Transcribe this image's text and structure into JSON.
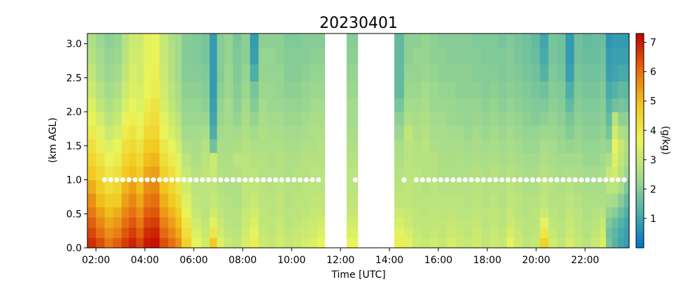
{
  "chart_data": {
    "type": "heatmap",
    "title": "20230401",
    "xlabel": "Time [UTC]",
    "ylabel": "(km AGL)",
    "colorbar_label": "(g/kg)",
    "x_ticks": [
      "02:00",
      "04:00",
      "06:00",
      "08:00",
      "10:00",
      "12:00",
      "14:00",
      "16:00",
      "18:00",
      "20:00",
      "22:00"
    ],
    "x_tick_hours": [
      2,
      4,
      6,
      8,
      10,
      12,
      14,
      16,
      18,
      20,
      22
    ],
    "xlim_hours": [
      1.65,
      23.8
    ],
    "y_ticks": [
      "0.0",
      "0.5",
      "1.0",
      "1.5",
      "2.0",
      "2.5",
      "3.0"
    ],
    "y_tick_values": [
      0.0,
      0.5,
      1.0,
      1.5,
      2.0,
      2.5,
      3.0
    ],
    "ylim": [
      0.0,
      3.15
    ],
    "colorbar_ticks": [
      "1",
      "2",
      "3",
      "4",
      "5",
      "6",
      "7"
    ],
    "colorbar_tick_values": [
      1,
      2,
      3,
      4,
      5,
      6,
      7
    ],
    "colorbar_range": [
      0,
      7.3
    ],
    "colormap": [
      "#0072c8",
      "#4fb0a8",
      "#a6dc8c",
      "#eaf55a",
      "#f2c81e",
      "#e56a10",
      "#c00000"
    ],
    "missing_periods_hours": [
      [
        11.35,
        12.25
      ],
      [
        13.35,
        14.2
      ]
    ],
    "layers_km": [
      0.0,
      0.15,
      0.3,
      0.45,
      0.6,
      0.8,
      1.0,
      1.2,
      1.4,
      1.6,
      1.8,
      2.0,
      2.2,
      2.45,
      2.7,
      2.95,
      3.15
    ],
    "profile_times_hours": [
      1.65,
      2.0,
      2.35,
      2.7,
      3.05,
      3.35,
      3.65,
      3.95,
      4.25,
      4.6,
      4.95,
      5.25,
      5.5,
      5.9,
      6.3,
      6.65,
      6.95,
      7.25,
      7.6,
      7.95,
      8.3,
      8.65,
      9.0,
      9.35,
      9.7,
      10.05,
      10.4,
      10.75,
      11.05,
      11.35,
      12.25,
      12.7,
      13.35,
      14.2,
      14.6,
      14.95,
      15.3,
      15.65,
      16.0,
      16.35,
      16.7,
      17.05,
      17.4,
      17.75,
      18.1,
      18.45,
      18.8,
      19.1,
      19.45,
      19.8,
      20.15,
      20.5,
      20.85,
      21.2,
      21.55,
      21.9,
      22.25,
      22.6,
      22.85,
      23.1,
      23.35,
      23.6,
      23.8
    ],
    "profiles_gkg": [
      [
        6.8,
        6.5,
        6.2,
        5.9,
        5.6,
        5.2,
        4.8,
        4.5,
        4.2,
        3.9,
        3.6,
        3.4,
        3.1,
        2.9,
        2.7,
        2.6
      ],
      [
        6.4,
        6.0,
        5.7,
        5.4,
        5.0,
        4.7,
        4.4,
        4.1,
        3.8,
        3.5,
        3.2,
        2.9,
        2.7,
        2.5,
        2.4,
        2.3
      ],
      [
        5.9,
        5.6,
        5.3,
        5.0,
        4.7,
        4.3,
        4.0,
        3.7,
        3.4,
        3.1,
        2.8,
        2.6,
        2.4,
        2.3,
        2.2,
        2.1
      ],
      [
        6.2,
        5.8,
        5.5,
        5.2,
        4.8,
        4.5,
        4.2,
        3.9,
        3.6,
        3.3,
        3.0,
        2.8,
        2.6,
        2.4,
        2.3,
        2.2
      ],
      [
        6.6,
        6.3,
        6.0,
        5.7,
        5.4,
        5.1,
        4.8,
        4.5,
        4.2,
        3.9,
        3.6,
        3.3,
        3.1,
        2.9,
        2.8,
        2.7
      ],
      [
        6.9,
        6.6,
        6.3,
        6.0,
        5.7,
        5.4,
        5.0,
        4.7,
        4.4,
        4.1,
        3.8,
        3.6,
        3.4,
        3.3,
        3.2,
        3.1
      ],
      [
        6.5,
        6.2,
        5.9,
        5.6,
        5.3,
        5.0,
        4.7,
        4.4,
        4.1,
        3.8,
        3.6,
        3.4,
        3.3,
        3.2,
        3.2,
        3.1
      ],
      [
        7.0,
        6.8,
        6.5,
        6.2,
        5.9,
        5.6,
        5.3,
        5.0,
        4.7,
        4.4,
        4.1,
        3.9,
        3.7,
        3.6,
        3.5,
        3.5
      ],
      [
        7.1,
        6.9,
        6.6,
        6.3,
        6.0,
        5.7,
        5.4,
        5.1,
        4.8,
        4.5,
        4.3,
        4.1,
        3.9,
        3.8,
        3.7,
        3.6
      ],
      [
        6.4,
        6.1,
        5.8,
        5.5,
        5.2,
        4.9,
        4.6,
        4.3,
        4.0,
        3.7,
        3.5,
        3.3,
        3.2,
        3.1,
        3.0,
        3.0
      ],
      [
        6.0,
        5.7,
        5.4,
        5.1,
        4.8,
        4.5,
        4.2,
        3.9,
        3.6,
        3.3,
        3.1,
        2.9,
        2.8,
        2.7,
        2.7,
        2.6
      ],
      [
        5.6,
        5.3,
        5.0,
        4.7,
        4.4,
        4.1,
        3.8,
        3.5,
        3.2,
        3.0,
        2.8,
        2.6,
        2.5,
        2.4,
        2.4,
        2.4
      ],
      [
        4.6,
        4.3,
        4.0,
        3.7,
        3.4,
        3.2,
        3.0,
        2.8,
        2.6,
        2.4,
        2.3,
        2.2,
        2.1,
        2.0,
        2.0,
        2.0
      ],
      [
        3.6,
        3.4,
        3.2,
        3.0,
        2.9,
        2.8,
        2.7,
        2.6,
        2.5,
        2.4,
        2.3,
        2.2,
        2.1,
        2.0,
        1.9,
        1.9
      ],
      [
        3.2,
        3.0,
        2.9,
        2.8,
        2.8,
        2.8,
        2.9,
        2.8,
        2.7,
        2.5,
        2.3,
        2.1,
        2.0,
        1.9,
        1.8,
        1.8
      ],
      [
        4.8,
        4.0,
        3.5,
        3.2,
        3.0,
        2.9,
        3.0,
        3.1,
        1.7,
        1.2,
        1.0,
        0.9,
        0.8,
        0.8,
        0.8,
        0.8
      ],
      [
        3.4,
        3.2,
        3.0,
        2.9,
        2.8,
        2.7,
        2.7,
        2.6,
        2.5,
        2.4,
        2.3,
        2.2,
        2.1,
        2.0,
        2.0,
        2.0
      ],
      [
        3.0,
        2.9,
        2.8,
        2.7,
        2.7,
        2.6,
        2.6,
        2.6,
        2.5,
        2.5,
        2.4,
        2.4,
        2.3,
        2.3,
        2.2,
        2.2
      ],
      [
        2.9,
        2.8,
        2.7,
        2.7,
        2.6,
        2.6,
        2.7,
        2.8,
        2.6,
        2.4,
        2.2,
        2.1,
        2.0,
        1.9,
        1.9,
        1.8
      ],
      [
        3.3,
        3.2,
        3.1,
        3.0,
        2.9,
        2.9,
        2.8,
        2.8,
        2.7,
        2.6,
        2.5,
        2.4,
        2.3,
        2.2,
        2.1,
        2.1
      ],
      [
        3.8,
        3.6,
        3.4,
        3.2,
        3.0,
        2.9,
        2.8,
        2.7,
        2.6,
        2.4,
        2.2,
        2.0,
        1.8,
        1.2,
        0.9,
        0.8
      ],
      [
        3.1,
        3.0,
        2.9,
        2.9,
        2.8,
        2.8,
        2.7,
        2.7,
        2.6,
        2.6,
        2.5,
        2.4,
        2.3,
        2.2,
        2.2,
        2.1
      ],
      [
        3.0,
        2.9,
        2.9,
        2.8,
        2.8,
        2.7,
        2.7,
        2.6,
        2.6,
        2.5,
        2.4,
        2.3,
        2.3,
        2.2,
        2.2,
        2.1
      ],
      [
        3.2,
        3.1,
        3.0,
        2.9,
        2.9,
        2.8,
        2.7,
        2.7,
        2.6,
        2.5,
        2.4,
        2.3,
        2.2,
        2.2,
        2.1,
        2.1
      ],
      [
        3.0,
        2.9,
        2.8,
        2.8,
        2.7,
        2.7,
        2.6,
        2.6,
        2.5,
        2.4,
        2.3,
        2.2,
        2.1,
        2.0,
        2.0,
        1.9
      ],
      [
        3.1,
        3.0,
        2.9,
        2.8,
        2.8,
        2.7,
        2.7,
        2.6,
        2.5,
        2.4,
        2.3,
        2.2,
        2.1,
        2.0,
        2.0,
        1.9
      ],
      [
        3.3,
        3.1,
        3.0,
        2.9,
        2.8,
        2.8,
        2.7,
        2.7,
        2.6,
        2.5,
        2.4,
        2.3,
        2.2,
        2.1,
        2.0,
        2.0
      ],
      [
        3.4,
        3.2,
        3.1,
        3.0,
        2.9,
        2.8,
        2.8,
        2.7,
        2.6,
        2.6,
        2.5,
        2.4,
        2.3,
        2.2,
        2.1,
        2.0
      ],
      [
        3.6,
        3.4,
        3.2,
        3.0,
        2.9,
        2.8,
        2.8,
        2.7,
        2.7,
        2.6,
        2.5,
        2.4,
        2.3,
        2.2,
        2.1,
        2.0
      ],
      null,
      [
        3.6,
        3.4,
        3.2,
        3.0,
        2.9,
        2.8,
        2.8,
        2.7,
        2.6,
        2.5,
        2.4,
        2.4,
        2.3,
        2.2,
        2.1,
        2.0
      ],
      null,
      null,
      [
        3.8,
        3.5,
        3.3,
        3.1,
        2.9,
        2.8,
        2.7,
        2.6,
        2.5,
        2.3,
        2.1,
        1.8,
        1.5,
        1.5,
        1.5,
        1.5
      ],
      [
        3.5,
        3.3,
        3.1,
        3.0,
        2.9,
        2.9,
        2.8,
        2.8,
        2.8,
        2.9,
        2.6,
        2.4,
        2.3,
        2.2,
        2.1,
        2.1
      ],
      [
        3.1,
        3.0,
        2.9,
        2.9,
        2.8,
        2.8,
        2.8,
        2.7,
        2.7,
        2.6,
        2.5,
        2.4,
        2.3,
        2.2,
        2.2,
        2.1
      ],
      [
        3.0,
        2.9,
        2.9,
        2.8,
        2.8,
        2.7,
        2.7,
        2.7,
        2.8,
        2.7,
        2.6,
        2.5,
        2.4,
        2.3,
        2.2,
        2.2
      ],
      [
        3.2,
        3.0,
        2.9,
        2.9,
        2.8,
        2.8,
        2.7,
        2.7,
        2.6,
        2.5,
        2.4,
        2.3,
        2.3,
        2.2,
        2.1,
        2.1
      ],
      [
        3.0,
        2.9,
        2.9,
        2.8,
        2.8,
        2.7,
        2.6,
        2.6,
        2.5,
        2.5,
        2.4,
        2.3,
        2.2,
        2.1,
        2.1,
        2.0
      ],
      [
        3.3,
        3.1,
        3.0,
        2.9,
        2.8,
        2.7,
        2.6,
        2.5,
        2.5,
        2.4,
        2.3,
        2.3,
        2.2,
        2.1,
        2.0,
        2.0
      ],
      [
        3.1,
        3.0,
        2.9,
        2.8,
        2.8,
        2.7,
        2.6,
        2.6,
        2.5,
        2.4,
        2.3,
        2.2,
        2.1,
        2.1,
        2.0,
        2.0
      ],
      [
        3.0,
        2.9,
        2.9,
        2.8,
        2.7,
        2.7,
        2.6,
        2.5,
        2.4,
        2.3,
        2.2,
        2.2,
        2.1,
        2.1,
        2.0,
        2.0
      ],
      [
        3.2,
        3.1,
        3.0,
        2.9,
        2.8,
        2.8,
        2.7,
        2.6,
        2.5,
        2.4,
        2.3,
        2.2,
        2.1,
        2.0,
        2.0,
        1.9
      ],
      [
        2.9,
        2.9,
        2.8,
        2.8,
        2.7,
        2.7,
        2.6,
        2.5,
        2.4,
        2.3,
        2.2,
        2.1,
        2.0,
        2.0,
        1.9,
        1.9
      ],
      [
        3.1,
        3.0,
        2.9,
        2.9,
        2.8,
        2.7,
        2.7,
        2.6,
        2.5,
        2.4,
        2.3,
        2.2,
        2.1,
        2.0,
        1.9,
        1.9
      ],
      [
        3.0,
        2.9,
        2.8,
        2.8,
        2.7,
        2.7,
        2.6,
        2.5,
        2.4,
        2.3,
        2.2,
        2.1,
        2.0,
        1.9,
        1.9,
        1.8
      ],
      [
        3.6,
        3.3,
        3.1,
        3.0,
        2.9,
        2.8,
        2.7,
        2.6,
        2.5,
        2.4,
        2.3,
        2.2,
        2.1,
        2.0,
        2.0,
        1.9
      ],
      [
        3.1,
        3.0,
        2.9,
        2.8,
        2.8,
        2.7,
        2.6,
        2.5,
        2.4,
        2.3,
        2.2,
        2.1,
        2.0,
        1.9,
        1.8,
        1.8
      ],
      [
        2.9,
        2.8,
        2.8,
        2.7,
        2.7,
        2.6,
        2.5,
        2.4,
        2.3,
        2.2,
        2.1,
        2.0,
        1.9,
        1.8,
        1.7,
        1.7
      ],
      [
        3.0,
        2.9,
        2.8,
        2.8,
        2.7,
        2.6,
        2.5,
        2.4,
        2.3,
        2.2,
        2.0,
        1.9,
        1.8,
        1.7,
        1.6,
        1.5
      ],
      [
        4.6,
        4.0,
        3.5,
        3.1,
        2.9,
        2.8,
        2.7,
        2.6,
        2.5,
        2.3,
        2.1,
        1.9,
        1.7,
        1.3,
        1.1,
        1.0
      ],
      [
        3.2,
        3.0,
        2.9,
        2.8,
        2.7,
        2.7,
        2.6,
        2.5,
        2.4,
        2.3,
        2.2,
        2.1,
        2.0,
        1.9,
        1.8,
        1.8
      ],
      [
        2.9,
        2.8,
        2.8,
        2.7,
        2.7,
        2.6,
        2.5,
        2.4,
        2.3,
        2.2,
        2.1,
        2.0,
        1.9,
        1.8,
        1.7,
        1.7
      ],
      [
        3.3,
        3.1,
        3.0,
        2.9,
        2.8,
        2.7,
        2.6,
        2.4,
        2.2,
        2.0,
        1.8,
        1.5,
        1.2,
        0.9,
        0.8,
        0.8
      ],
      [
        3.0,
        2.9,
        2.8,
        2.8,
        2.7,
        2.6,
        2.5,
        2.4,
        2.3,
        2.2,
        2.1,
        2.0,
        1.9,
        1.8,
        1.7,
        1.7
      ],
      [
        2.8,
        2.7,
        2.7,
        2.6,
        2.6,
        2.5,
        2.4,
        2.3,
        2.2,
        2.1,
        2.0,
        1.9,
        1.8,
        1.7,
        1.6,
        1.5
      ],
      [
        3.1,
        2.9,
        2.8,
        2.7,
        2.6,
        2.5,
        2.4,
        2.3,
        2.2,
        2.1,
        2.0,
        1.9,
        1.8,
        1.7,
        1.6,
        1.6
      ],
      [
        3.4,
        3.2,
        3.0,
        2.8,
        2.6,
        2.5,
        2.5,
        2.4,
        2.3,
        2.2,
        2.1,
        2.0,
        1.9,
        1.8,
        1.7,
        1.6
      ],
      [
        1.8,
        1.7,
        1.9,
        2.2,
        2.5,
        2.8,
        3.0,
        2.6,
        2.2,
        1.8,
        1.5,
        1.3,
        1.1,
        0.9,
        0.8,
        0.7
      ],
      [
        1.3,
        1.4,
        1.6,
        2.0,
        2.4,
        2.8,
        3.2,
        3.4,
        3.6,
        3.2,
        2.8,
        1.7,
        1.3,
        1.0,
        0.9,
        0.8
      ],
      [
        1.0,
        1.1,
        1.3,
        1.6,
        2.0,
        2.4,
        2.7,
        2.9,
        3.0,
        2.6,
        2.1,
        1.8,
        1.5,
        1.1,
        0.9,
        0.8
      ],
      [
        0.8,
        0.9,
        1.0,
        1.2,
        1.5,
        1.9,
        2.3,
        2.5,
        2.6,
        2.4,
        2.1,
        1.7,
        1.4,
        1.1,
        0.9,
        0.8
      ],
      [
        0.8,
        0.9,
        1.0,
        1.2,
        1.5,
        1.9,
        2.3,
        2.5,
        2.6,
        2.4,
        2.1,
        1.7,
        1.4,
        1.1,
        0.9,
        0.8
      ]
    ],
    "marker_height_km": 1.0,
    "marker_times_hours": [
      2.35,
      2.6,
      2.85,
      3.1,
      3.35,
      3.6,
      3.85,
      4.1,
      4.35,
      4.6,
      4.85,
      5.1,
      5.35,
      5.6,
      5.85,
      6.1,
      6.35,
      6.6,
      6.85,
      7.1,
      7.35,
      7.6,
      7.85,
      8.1,
      8.35,
      8.6,
      8.85,
      9.1,
      9.35,
      9.6,
      9.85,
      10.1,
      10.35,
      10.6,
      10.85,
      11.1,
      12.6,
      14.6,
      15.1,
      15.35,
      15.6,
      15.85,
      16.1,
      16.35,
      16.6,
      16.85,
      17.1,
      17.35,
      17.6,
      17.85,
      18.1,
      18.35,
      18.6,
      18.85,
      19.1,
      19.35,
      19.6,
      19.85,
      20.1,
      20.35,
      20.6,
      20.85,
      21.1,
      21.35,
      21.6,
      21.85,
      22.1,
      22.35,
      22.6,
      22.85,
      23.1,
      23.35,
      23.6
    ]
  }
}
